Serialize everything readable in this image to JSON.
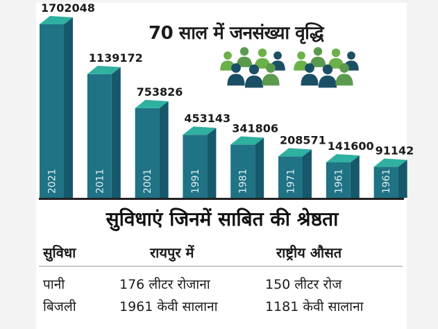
{
  "title": "70 साल में जनसंख्या वृद्धि",
  "chart_data": {
    "type": "bar",
    "title": "70 साल में जनसंख्या वृद्धि",
    "categories": [
      "2021",
      "2011",
      "2001",
      "1991",
      "1981",
      "1971",
      "1961",
      "1961"
    ],
    "values": [
      1702048,
      1139172,
      753826,
      453143,
      341806,
      208571,
      141600,
      91142
    ],
    "xlabel": "",
    "ylabel": "",
    "bar_colors": {
      "front": "#1f7384",
      "side": "#15596a",
      "top": "#2fb0a0"
    }
  },
  "facilities": {
    "title": "सुविधाएं जिनमें साबित की श्रेष्ठता",
    "headers": [
      "सुविधा",
      "रायपुर में",
      "राष्ट्रीय औसत"
    ],
    "rows": [
      [
        "पानी",
        "176 लीटर रोजाना",
        "150 लीटर रोज"
      ],
      [
        "बिजली",
        "1961 केवी सालाना",
        "1181 केवी सालाना"
      ]
    ]
  },
  "icon_colors": {
    "dark": "#1b4f66",
    "mid": "#5b9a4e",
    "light": "#6cb04a"
  }
}
